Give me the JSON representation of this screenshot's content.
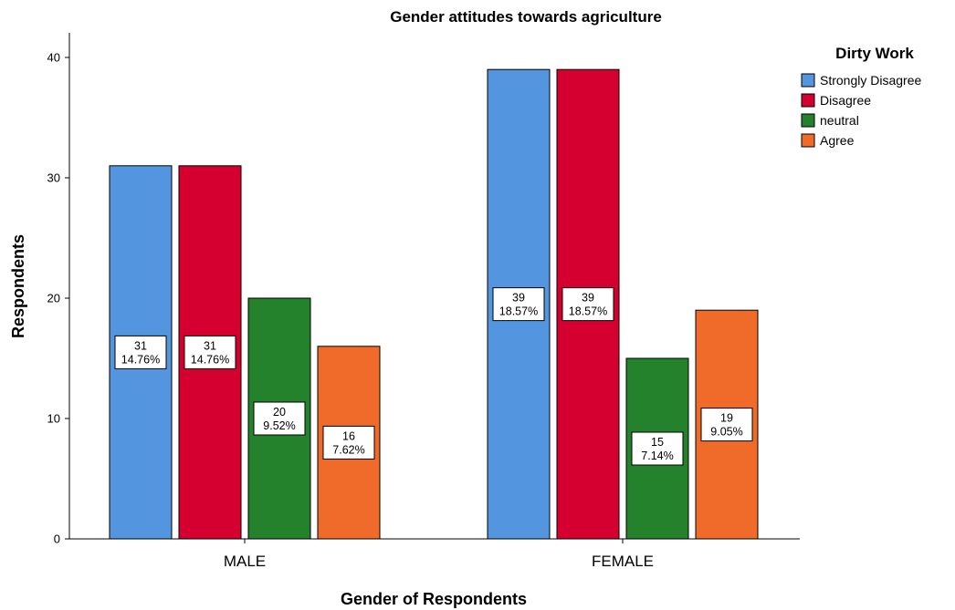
{
  "chart_data": {
    "type": "bar",
    "title": "Gender attitudes towards agriculture",
    "xlabel": "Gender of Respondents",
    "ylabel": "Respondents",
    "categories": [
      "MALE",
      "FEMALE"
    ],
    "ylim": [
      0,
      42
    ],
    "yticks": [
      0,
      10,
      20,
      30,
      40
    ],
    "grid": false,
    "legend": {
      "title": "Dirty Work",
      "position": "top-right"
    },
    "series": [
      {
        "name": "Strongly Disagree",
        "color": "#5495e0",
        "values": [
          31,
          39
        ],
        "percents": [
          "14.76%",
          "18.57%"
        ]
      },
      {
        "name": "Disagree",
        "color": "#d5002f",
        "values": [
          31,
          39
        ],
        "percents": [
          "14.76%",
          "18.57%"
        ]
      },
      {
        "name": "neutral",
        "color": "#23822b",
        "values": [
          20,
          15
        ],
        "percents": [
          "9.52%",
          "7.14%"
        ]
      },
      {
        "name": "Agree",
        "color": "#f06a2a",
        "values": [
          16,
          19
        ],
        "percents": [
          "7.62%",
          "9.05%"
        ]
      }
    ]
  }
}
